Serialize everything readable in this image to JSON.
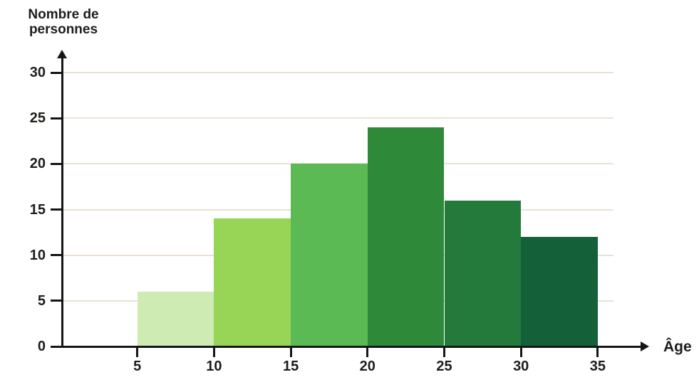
{
  "page": {
    "background": "#ffffff"
  },
  "chart": {
    "y_axis_title": {
      "line1": "Nombre de",
      "line2": "personnes"
    },
    "x_axis_title": "Âge",
    "colors": {
      "text": "#1d1d1b",
      "axis": "#161616",
      "gridline": "#e9e2d4",
      "background": "#ffffff"
    }
  },
  "chart_data": {
    "type": "bar",
    "subtype": "histogram",
    "title": "",
    "ylabel": "Nombre de personnes",
    "xlabel": "Âge",
    "categories": [
      "5-10",
      "10-15",
      "15-20",
      "20-25",
      "25-30",
      "30-35"
    ],
    "bin_edges": [
      5,
      10,
      15,
      20,
      25,
      30,
      35
    ],
    "values": [
      6,
      14,
      20,
      24,
      16,
      12
    ],
    "bar_colors": [
      "#cdebb2",
      "#98d455",
      "#5cba55",
      "#2e8a38",
      "#237a3b",
      "#146038"
    ],
    "y_ticks": [
      0,
      5,
      10,
      15,
      20,
      25,
      30
    ],
    "x_ticks": [
      5,
      10,
      15,
      20,
      25,
      30,
      35
    ],
    "ylim": [
      0,
      32
    ],
    "grid": "horizontal",
    "legend": false,
    "bar_gap": 0
  }
}
